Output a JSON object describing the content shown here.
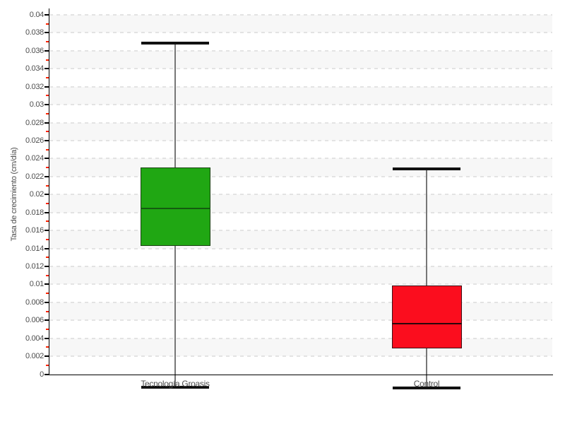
{
  "chart_data": {
    "type": "boxplot",
    "title": "",
    "xlabel": "",
    "ylabel": "Tasa de crecimiento (cm/día)",
    "categories": [
      "Tecnología Groasis",
      "Control"
    ],
    "series": [
      {
        "name": "Tecnología Groasis",
        "min": 0.0002,
        "q1": 0.0159,
        "median": 0.0201,
        "q3": 0.0247,
        "max": 0.0385,
        "fill": "#20a713",
        "border": "#1b4312",
        "median_color": "#145c10"
      },
      {
        "name": "Control",
        "min": 0.0001,
        "q1": 0.0045,
        "median": 0.0073,
        "q3": 0.0115,
        "max": 0.0245,
        "fill": "#fb0d1e",
        "border": "#3c1016",
        "median_color": "#2a060b"
      }
    ],
    "ylim": [
      0,
      0.04
    ],
    "y_tick_step": 0.002,
    "y_minor_tick_step": 0.001,
    "y_tick_labels": [
      "0",
      "0.002",
      "0.004",
      "0.006",
      "0.008",
      "0.01",
      "0.012",
      "0.014",
      "0.016",
      "0.018",
      "0.02",
      "0.022",
      "0.024",
      "0.026",
      "0.028",
      "0.03",
      "0.032",
      "0.034",
      "0.036",
      "0.038",
      "0.04"
    ],
    "grid": {
      "dashed": true,
      "line_color": "#e3e3e3",
      "band_color": "#f7f7f7",
      "bands_alternate": true
    },
    "legend": "none",
    "colors": {
      "axis": "#000000",
      "major_tick": "#000000",
      "minor_tick": "#ff2200",
      "whisker_line": "#777777",
      "whisker_cap": "#111111",
      "text": "#4d4d4d",
      "background": "#ffffff"
    }
  }
}
